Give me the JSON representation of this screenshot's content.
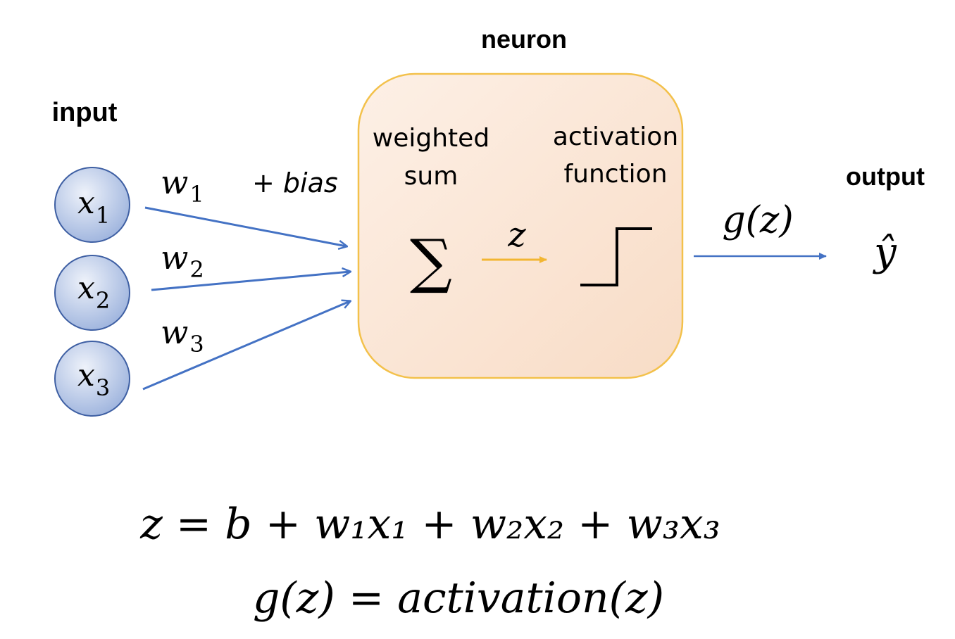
{
  "labels": {
    "input": "input",
    "neuron": "neuron",
    "output": "output",
    "bias": "+ bias",
    "weighted_sum_line1": "weighted",
    "weighted_sum_line2": "sum",
    "activation_line1": "activation",
    "activation_line2": "function"
  },
  "inputs": [
    {
      "var": "x",
      "sub": "1"
    },
    {
      "var": "x",
      "sub": "2"
    },
    {
      "var": "x",
      "sub": "3"
    }
  ],
  "weights": [
    {
      "var": "w",
      "sub": "1"
    },
    {
      "var": "w",
      "sub": "2"
    },
    {
      "var": "w",
      "sub": "3"
    }
  ],
  "sum_symbol": "∑",
  "z_label": "z",
  "output_function": "g(z)",
  "output_symbol": "ŷ",
  "equations": {
    "eq1": "z = b + w₁x₁ + w₂x₂ + w₃x₃",
    "eq2": "g(z) = activation(z)"
  },
  "colors": {
    "node_fill_light": "#dde6f5",
    "node_fill_dark": "#8fa9d8",
    "node_stroke": "#3e5fa3",
    "edge": "#4472c4",
    "neuron_fill": "#fbe3d1",
    "neuron_stroke": "#f3c14b",
    "z_arrow": "#f2b632"
  }
}
